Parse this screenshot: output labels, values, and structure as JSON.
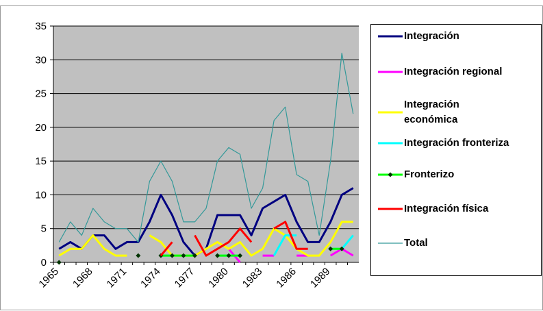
{
  "chart_data": {
    "type": "line",
    "categories": [
      "1965",
      null,
      null,
      "1968",
      null,
      null,
      "1971",
      null,
      null,
      "1974",
      null,
      null,
      "1977",
      null,
      null,
      "1980",
      null,
      null,
      "1983",
      null,
      null,
      "1986",
      null,
      null,
      "1989",
      null,
      null
    ],
    "ylim": [
      0,
      35
    ],
    "yticks": [
      0,
      5,
      10,
      15,
      20,
      25,
      30,
      35
    ],
    "grid": true,
    "series": [
      {
        "name": "Integración",
        "color": "#000080",
        "width": 3,
        "values": [
          2,
          3,
          2,
          4,
          4,
          2,
          3,
          3,
          6,
          10,
          7,
          3,
          1,
          2,
          7,
          7,
          7,
          4,
          8,
          9,
          10,
          6,
          3,
          3,
          6,
          10,
          11
        ]
      },
      {
        "name": "Integración regional",
        "color": "#ff00ff",
        "width": 3,
        "values": [
          null,
          null,
          null,
          null,
          null,
          null,
          null,
          null,
          null,
          null,
          null,
          null,
          null,
          null,
          null,
          2,
          0,
          null,
          1,
          1,
          null,
          1,
          1,
          null,
          1,
          2,
          1
        ]
      },
      {
        "name": "Integración económica",
        "color": "#ffff00",
        "width": 3,
        "values": [
          1,
          2,
          2,
          4,
          2,
          1,
          1,
          null,
          4,
          3,
          1,
          1,
          1,
          2,
          3,
          2,
          3,
          1,
          2,
          5,
          4,
          2,
          1,
          1,
          3,
          6,
          6
        ]
      },
      {
        "name": "Integración fronteriza",
        "color": "#00ffff",
        "width": 3,
        "values": [
          null,
          null,
          null,
          null,
          null,
          null,
          null,
          null,
          null,
          1,
          1,
          null,
          null,
          null,
          1,
          1,
          1,
          null,
          null,
          1,
          4,
          4,
          null,
          null,
          2,
          2,
          4
        ]
      },
      {
        "name": "Fronterizo",
        "color": "#00ff00",
        "width": 3,
        "marker": "diamond",
        "values": [
          0,
          null,
          null,
          null,
          null,
          null,
          null,
          1,
          null,
          1,
          1,
          1,
          1,
          null,
          1,
          1,
          1,
          null,
          null,
          null,
          null,
          null,
          null,
          null,
          2,
          2,
          null
        ]
      },
      {
        "name": "Integración física",
        "color": "#ff0000",
        "width": 3,
        "values": [
          null,
          null,
          null,
          null,
          null,
          null,
          null,
          null,
          null,
          1,
          3,
          null,
          4,
          1,
          2,
          3,
          5,
          3,
          null,
          5,
          6,
          2,
          2,
          null,
          null,
          null,
          null
        ]
      },
      {
        "name": "Total",
        "color": "#339999",
        "width": 1.2,
        "values": [
          3,
          6,
          4,
          8,
          6,
          5,
          5,
          3,
          12,
          15,
          12,
          6,
          6,
          8,
          15,
          17,
          16,
          8,
          11,
          21,
          23,
          13,
          12,
          4,
          15,
          31,
          22
        ]
      }
    ]
  }
}
